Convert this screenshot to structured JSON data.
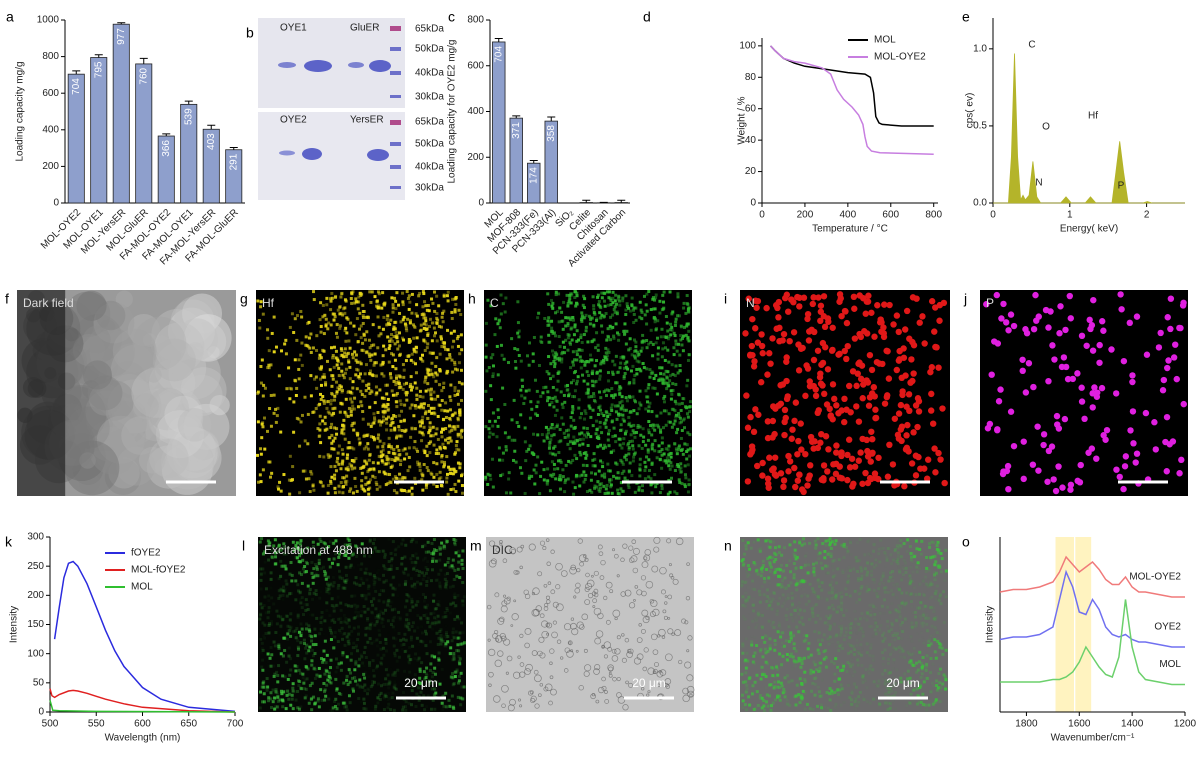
{
  "chart_data": [
    {
      "type": "bar",
      "panel": "a",
      "ylabel": "Loading capacity mg/g",
      "categories": [
        "MOL-OYE2",
        "MOL-OYE1",
        "MOL-YersER",
        "MOL-GluER",
        "FA-MOL-OYE2",
        "FA-MOL-OYE1",
        "FA-MOL-YersER",
        "FA-MOL-GluER"
      ],
      "values": [
        704,
        795,
        977,
        760,
        366,
        539,
        403,
        291
      ],
      "errors": [
        18,
        15,
        8,
        30,
        12,
        18,
        22,
        12
      ],
      "color": "#8e9fcc",
      "ylim": [
        0,
        1000
      ],
      "yticks": [
        0,
        200,
        400,
        600,
        800,
        1000
      ]
    },
    {
      "type": "bar",
      "panel": "c",
      "ylabel": "Loading capacity for OYE2 mg/g",
      "categories": [
        "MOL",
        "MOF-808",
        "PCN-333(Fe)",
        "PCN-333(Al)",
        "SiO₂",
        "Celite",
        "Chitosan",
        "Activated Carbon"
      ],
      "values": [
        704,
        371,
        174,
        358,
        0,
        2,
        1,
        2
      ],
      "errors": [
        15,
        10,
        12,
        18,
        0,
        10,
        2,
        10
      ],
      "value_labels": [
        "704",
        "371",
        "174",
        "358",
        null,
        null,
        null,
        null
      ],
      "color": "#8e9fcc",
      "ylim": [
        0,
        800
      ],
      "yticks": [
        0,
        200,
        400,
        600,
        800
      ]
    },
    {
      "type": "line",
      "panel": "d",
      "xlabel": "Temperature / °C",
      "ylabel": "Weight / %",
      "xlim": [
        0,
        820
      ],
      "xticks": [
        0,
        200,
        400,
        600,
        800
      ],
      "ylim": [
        0,
        105
      ],
      "yticks": [
        0,
        20,
        40,
        60,
        80,
        100
      ],
      "legend": "upper right",
      "series": [
        {
          "name": "MOL",
          "color": "#000000",
          "x": [
            40,
            60,
            100,
            150,
            200,
            300,
            400,
            480,
            505,
            520,
            530,
            545,
            560,
            650,
            800
          ],
          "values": [
            100,
            97,
            92,
            89,
            87,
            85,
            83,
            82,
            80,
            70,
            55,
            51,
            50,
            49,
            49
          ]
        },
        {
          "name": "MOL-OYE2",
          "color": "#c77ee0",
          "x": [
            40,
            60,
            100,
            150,
            200,
            280,
            320,
            350,
            380,
            420,
            450,
            470,
            480,
            490,
            510,
            550,
            800
          ],
          "values": [
            100,
            97,
            92,
            90,
            89,
            86,
            82,
            72,
            66,
            61,
            56,
            50,
            42,
            36,
            33,
            32,
            31
          ]
        }
      ]
    },
    {
      "type": "area",
      "panel": "e",
      "xlabel": "Energy( keV)",
      "ylabel": "cps( ev)",
      "xlim": [
        0,
        2.5
      ],
      "xticks": [
        0,
        1,
        2
      ],
      "ylim": [
        0,
        1.2
      ],
      "yticks": [
        {
          "value": 0,
          "label": "0.0"
        },
        0.5,
        {
          "value": 1,
          "label": "1.0"
        }
      ],
      "annotations": [
        "C",
        "N",
        "O",
        "Hf",
        "P"
      ],
      "series": [
        {
          "color": "#b4b42a",
          "x": [
            0,
            0.2,
            0.24,
            0.28,
            0.32,
            0.36,
            0.39,
            0.42,
            0.47,
            0.52,
            0.57,
            0.62,
            0.88,
            0.95,
            1.02,
            1.2,
            1.27,
            1.34,
            1.55,
            1.6,
            1.65,
            1.7,
            1.76,
            1.95,
            2.01,
            2.07,
            2.5
          ],
          "values": [
            0,
            0,
            0.3,
            0.97,
            0.3,
            0.02,
            0.05,
            0.02,
            0.05,
            0.27,
            0.04,
            0,
            0,
            0.04,
            0,
            0,
            0.04,
            0,
            0,
            0.2,
            0.4,
            0.2,
            0,
            0,
            0.01,
            0,
            0
          ]
        }
      ]
    },
    {
      "type": "line",
      "panel": "k",
      "xlabel": "Wavelength (nm)",
      "ylabel": "Intensity",
      "xlim": [
        500,
        700
      ],
      "xticks": [
        500,
        550,
        600,
        650,
        700
      ],
      "ylim": [
        0,
        300
      ],
      "yticks": [
        0,
        50,
        100,
        150,
        200,
        250,
        300
      ],
      "legend": "upper right",
      "series": [
        {
          "name": "fOYE2",
          "color": "#2b2bde",
          "x": [
            505,
            510,
            515,
            520,
            525,
            530,
            540,
            550,
            560,
            570,
            580,
            600,
            620,
            650,
            700
          ],
          "values": [
            125,
            180,
            230,
            255,
            258,
            250,
            220,
            180,
            140,
            105,
            78,
            42,
            22,
            8,
            1
          ]
        },
        {
          "name": "MOL-fOYE2",
          "color": "#e02020",
          "x": [
            500,
            502,
            505,
            510,
            520,
            525,
            530,
            540,
            550,
            560,
            580,
            600,
            650,
            700
          ],
          "values": [
            40,
            28,
            25,
            30,
            36,
            37,
            36,
            32,
            27,
            22,
            14,
            8,
            2,
            0
          ]
        },
        {
          "name": "MOL",
          "color": "#2fbf2f",
          "x": [
            500,
            503,
            510,
            550,
            700
          ],
          "values": [
            20,
            3,
            2,
            1,
            0
          ]
        }
      ]
    },
    {
      "type": "line",
      "panel": "o",
      "xlabel": "Wavenumber/cm⁻¹",
      "ylabel": "Intensity",
      "xlim": [
        1900,
        1200
      ],
      "xticks": [
        1800,
        1600,
        1400,
        1200
      ],
      "ylim": [
        1,
        8
      ],
      "legend": "line end",
      "band_color": "#fff3c0",
      "bands": [
        {
          "from": 1690,
          "to": 1620
        },
        {
          "from": 1615,
          "to": 1555
        }
      ],
      "x": [
        1900,
        1850,
        1800,
        1750,
        1700,
        1675,
        1650,
        1625,
        1600,
        1575,
        1550,
        1525,
        1500,
        1475,
        1450,
        1425,
        1400,
        1375,
        1350,
        1300,
        1250,
        1200
      ],
      "series": [
        {
          "name": "MOL-OYE2",
          "color": "#f07a7a",
          "values": [
            5.8,
            5.9,
            5.9,
            6.0,
            6.2,
            6.6,
            7.2,
            6.9,
            6.6,
            6.8,
            7.0,
            6.7,
            6.3,
            6.1,
            6.1,
            6.4,
            6.0,
            5.8,
            5.8,
            5.7,
            5.6,
            5.6
          ]
        },
        {
          "name": "OYE2",
          "color": "#7070f0",
          "values": [
            3.9,
            4.0,
            4.0,
            4.1,
            4.4,
            5.5,
            6.6,
            6.0,
            5.0,
            4.9,
            5.5,
            5.1,
            4.4,
            4.1,
            4.0,
            4.1,
            3.9,
            3.8,
            3.8,
            3.7,
            3.6,
            3.6
          ]
        },
        {
          "name": "MOL",
          "color": "#6cd06c",
          "values": [
            2.2,
            2.2,
            2.2,
            2.2,
            2.3,
            2.3,
            2.4,
            2.6,
            3.0,
            3.6,
            3.2,
            2.8,
            2.5,
            2.4,
            3.2,
            5.5,
            3.6,
            2.6,
            2.3,
            2.2,
            2.1,
            2.1
          ]
        }
      ]
    }
  ],
  "gel": {
    "panel": "b",
    "lanes_top": [
      "OYE1",
      "GluER"
    ],
    "lanes_bottom": [
      "OYE2",
      "YersER"
    ],
    "markers": [
      "65kDa",
      "50kDa",
      "40kDa",
      "30kDa"
    ]
  },
  "images": [
    {
      "panel": "f",
      "label": "Dark field"
    },
    {
      "panel": "g",
      "label": "Hf"
    },
    {
      "panel": "h",
      "label": "C"
    },
    {
      "panel": "i",
      "label": "N"
    },
    {
      "panel": "j",
      "label": "P"
    },
    {
      "panel": "l",
      "label": "Excitation at 488 nm",
      "scale": "20 μm"
    },
    {
      "panel": "m",
      "label": "DIC",
      "scale": "20 μm"
    },
    {
      "panel": "n",
      "scale": "20 μm"
    }
  ]
}
